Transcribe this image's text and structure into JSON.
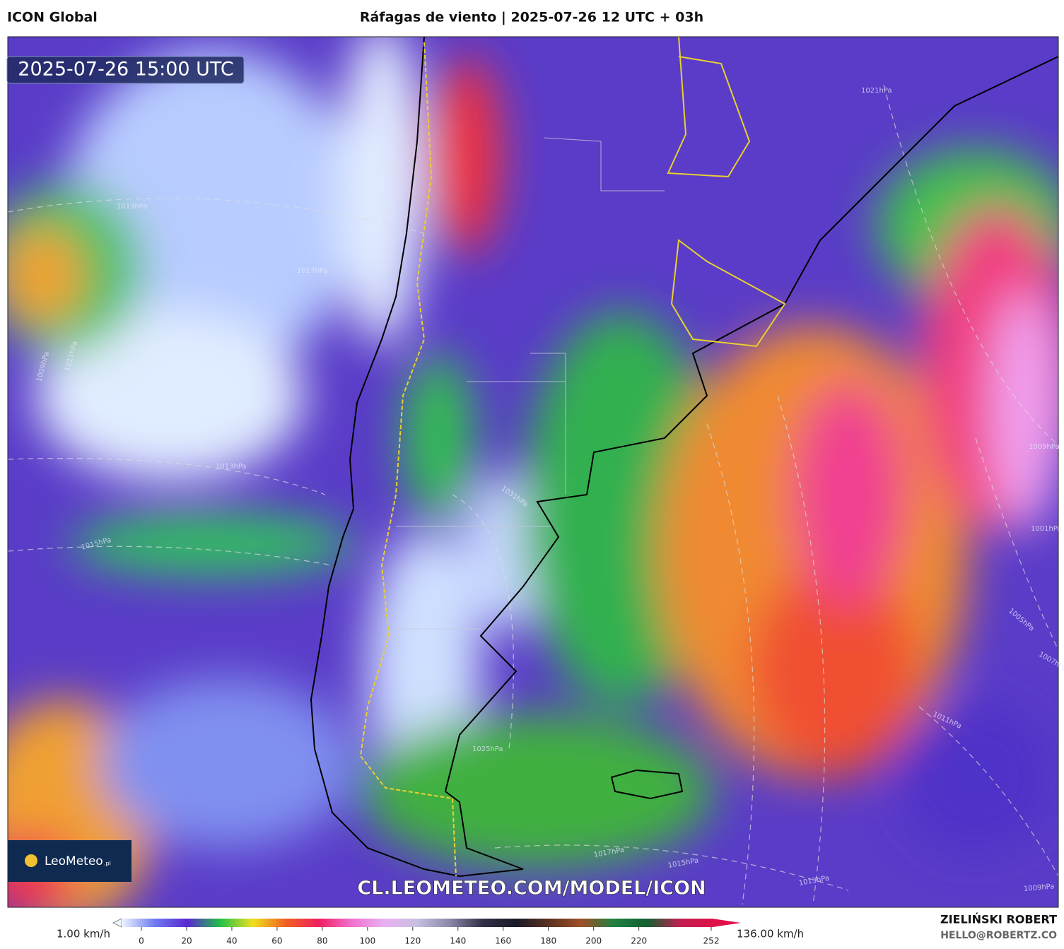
{
  "header": {
    "model": "ICON Global",
    "title": "Ráfagas de viento | 2025-07-26 12 UTC + 03h"
  },
  "map": {
    "valid_time": "2025-07-26 15:00 UTC",
    "url": "CL.LEOMETEO.COM/MODEL/ICON",
    "logo": "LeoMeteo",
    "logo_suffix": ".pl",
    "isobar_labels": [
      "1019hPa",
      "1017hPa",
      "1013hPa",
      "1015hPa",
      "1011hPa",
      "1009hPa",
      "1031hPa",
      "1025hPa",
      "1017hPa",
      "1015hPa",
      "1013hPa",
      "1009hPa",
      "1011hPa",
      "1009hPa",
      "1001hPa",
      "1005hPa",
      "1007hPa",
      "1021hPa"
    ]
  },
  "colorbar": {
    "min_label": "1.00 km/h",
    "max_label": "136.00 km/h",
    "lim": [
      0,
      252
    ],
    "ticks": [
      0,
      20,
      40,
      60,
      80,
      100,
      120,
      140,
      160,
      180,
      200,
      220,
      252
    ],
    "colors": [
      "#eef6ff",
      "#6f7cf0",
      "#5a28d0",
      "#20c048",
      "#f0e020",
      "#f06020",
      "#f02060",
      "#f070d0",
      "#e8b0f0",
      "#c8c0e0",
      "#8a88a8",
      "#303048",
      "#1a1a28",
      "#5a3020",
      "#a05028",
      "#208040",
      "#106030",
      "#c02050",
      "#e0104a"
    ]
  },
  "credits": {
    "author": "ZIELIŃSKI ROBERT",
    "contact": "HELLO@ROBERTZ.CO"
  }
}
